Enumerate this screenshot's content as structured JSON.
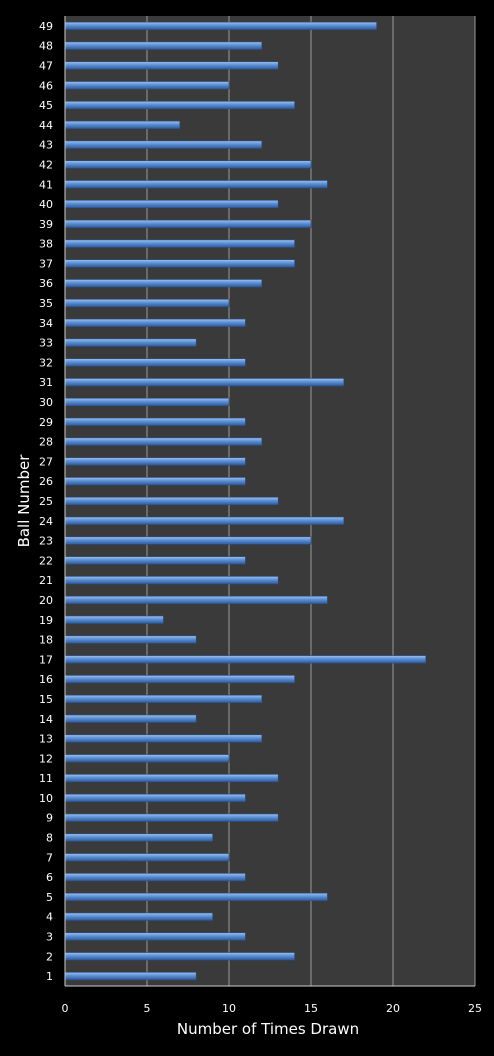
{
  "chart_data": {
    "type": "bar",
    "orientation": "horizontal",
    "title": "",
    "xlabel": "Number of Times Drawn",
    "ylabel": "Ball Number",
    "xlim": [
      0,
      25
    ],
    "xticks": [
      0,
      5,
      10,
      15,
      20,
      25
    ],
    "grid": "vertical",
    "legend": "none",
    "colors": {
      "background": "#000000",
      "plot_area": "#3a3a3a",
      "bar": "#5b8fd4",
      "bar_edge": "#2c4f86",
      "gridline": "#9a9a9a",
      "text": "#ffffff"
    },
    "categories": [
      "1",
      "2",
      "3",
      "4",
      "5",
      "6",
      "7",
      "8",
      "9",
      "10",
      "11",
      "12",
      "13",
      "14",
      "15",
      "16",
      "17",
      "18",
      "19",
      "20",
      "21",
      "22",
      "23",
      "24",
      "25",
      "26",
      "27",
      "28",
      "29",
      "30",
      "31",
      "32",
      "33",
      "34",
      "35",
      "36",
      "37",
      "38",
      "39",
      "40",
      "41",
      "42",
      "43",
      "44",
      "45",
      "46",
      "47",
      "48",
      "49"
    ],
    "values": [
      8,
      14,
      11,
      9,
      16,
      11,
      10,
      9,
      13,
      11,
      13,
      10,
      12,
      8,
      12,
      14,
      22,
      8,
      6,
      16,
      13,
      11,
      15,
      17,
      13,
      11,
      11,
      12,
      11,
      10,
      17,
      11,
      8,
      11,
      10,
      12,
      14,
      14,
      15,
      13,
      16,
      15,
      12,
      7,
      14,
      10,
      13,
      12,
      19
    ]
  }
}
